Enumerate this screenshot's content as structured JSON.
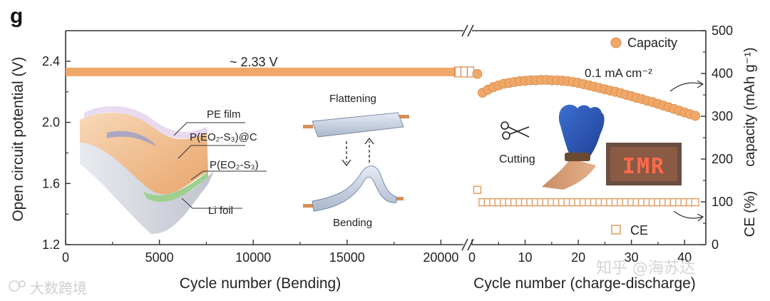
{
  "panel_label": "g",
  "chart_data": [
    {
      "type": "line",
      "title": "",
      "xlabel": "Cycle number (Bending)",
      "ylabel": "Open circuit potential (V)",
      "xlim": [
        0,
        21200
      ],
      "ylim": [
        1.2,
        2.6
      ],
      "x_ticks": [
        "0",
        "5000",
        "10000",
        "15000",
        "20000"
      ],
      "y_ticks": [
        "1.2",
        "1.6",
        "2.0",
        "2.4"
      ],
      "series": [
        {
          "name": "Open circuit potential",
          "x": [
            0,
            20800
          ],
          "y": [
            2.33,
            2.33
          ]
        }
      ],
      "annotation": "~ 2.33 V",
      "color": "#f0a868"
    },
    {
      "type": "scatter",
      "xlabel": "Cycle number (charge-discharge)",
      "ylabel_right_top": "capacity (mAh g⁻¹)",
      "ylabel_right_bottom": "CE (%)",
      "xlim": [
        0,
        44
      ],
      "ylim": [
        0,
        500
      ],
      "x_ticks": [
        "0",
        "10",
        "20",
        "30",
        "40"
      ],
      "y_ticks": [
        "0",
        "100",
        "200",
        "300",
        "400",
        "500"
      ],
      "annotation": "0.1 mA cm⁻²",
      "series": [
        {
          "name": "Capacity",
          "marker": "filled-circle",
          "color": "#f0a868",
          "x": [
            1,
            2,
            3,
            4,
            5,
            6,
            7,
            8,
            9,
            10,
            11,
            12,
            13,
            14,
            15,
            16,
            17,
            18,
            19,
            20,
            21,
            22,
            23,
            24,
            25,
            26,
            27,
            28,
            29,
            30,
            31,
            32,
            33,
            34,
            35,
            36,
            37,
            38,
            39,
            40,
            41,
            42
          ],
          "y": [
            399,
            355,
            362,
            368,
            372,
            376,
            378,
            380,
            382,
            383,
            384,
            384,
            385,
            385,
            384,
            384,
            383,
            382,
            380,
            378,
            375,
            372,
            369,
            366,
            363,
            360,
            357,
            354,
            350,
            347,
            343,
            340,
            336,
            333,
            329,
            325,
            321,
            317,
            313,
            309,
            305,
            301
          ]
        },
        {
          "name": "CE",
          "marker": "open-square",
          "color": "#e39a5a",
          "x": [
            1,
            2,
            3,
            4,
            5,
            6,
            7,
            8,
            9,
            10,
            11,
            12,
            13,
            14,
            15,
            16,
            17,
            18,
            19,
            20,
            21,
            22,
            23,
            24,
            25,
            26,
            27,
            28,
            29,
            30,
            31,
            32,
            33,
            34,
            35,
            36,
            37,
            38,
            39,
            40,
            41,
            42
          ],
          "y": [
            128,
            99,
            99,
            99,
            99,
            99,
            99,
            99,
            99,
            99,
            99,
            99,
            99,
            99,
            99,
            99,
            99,
            99,
            99,
            99,
            99,
            99,
            99,
            99,
            99,
            99,
            99,
            99,
            99,
            99,
            99,
            99,
            99,
            99,
            99,
            99,
            99,
            99,
            99,
            99,
            99,
            99
          ]
        }
      ]
    }
  ],
  "inset_labels": {
    "pe_film": "PE film",
    "cathode": "P(EO₂-S₃)@C",
    "electrolyte": "P(EO₂-S₃)",
    "li_foil": "Li foil",
    "flattening": "Flattening",
    "bending": "Bending",
    "cutting": "Cutting",
    "led_text": "IMR"
  },
  "watermarks": {
    "left": "大数跨境",
    "right": "知乎 @海苏达"
  }
}
